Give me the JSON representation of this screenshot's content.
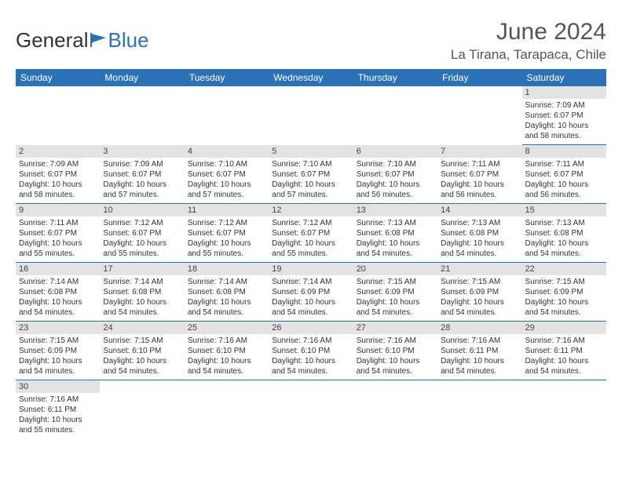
{
  "logo": {
    "text1": "General",
    "text2": "Blue"
  },
  "title": "June 2024",
  "location": "La Tirana, Tarapaca, Chile",
  "colors": {
    "header_bg": "#2a72b5",
    "daynum_bg": "#e3e3e3",
    "border": "#2a72b5"
  },
  "weekdays": [
    "Sunday",
    "Monday",
    "Tuesday",
    "Wednesday",
    "Thursday",
    "Friday",
    "Saturday"
  ],
  "weeks": [
    [
      null,
      null,
      null,
      null,
      null,
      null,
      {
        "d": "1",
        "sr": "7:09 AM",
        "ss": "6:07 PM",
        "dl": "10 hours and 58 minutes."
      }
    ],
    [
      {
        "d": "2",
        "sr": "7:09 AM",
        "ss": "6:07 PM",
        "dl": "10 hours and 58 minutes."
      },
      {
        "d": "3",
        "sr": "7:09 AM",
        "ss": "6:07 PM",
        "dl": "10 hours and 57 minutes."
      },
      {
        "d": "4",
        "sr": "7:10 AM",
        "ss": "6:07 PM",
        "dl": "10 hours and 57 minutes."
      },
      {
        "d": "5",
        "sr": "7:10 AM",
        "ss": "6:07 PM",
        "dl": "10 hours and 57 minutes."
      },
      {
        "d": "6",
        "sr": "7:10 AM",
        "ss": "6:07 PM",
        "dl": "10 hours and 56 minutes."
      },
      {
        "d": "7",
        "sr": "7:11 AM",
        "ss": "6:07 PM",
        "dl": "10 hours and 56 minutes."
      },
      {
        "d": "8",
        "sr": "7:11 AM",
        "ss": "6:07 PM",
        "dl": "10 hours and 56 minutes."
      }
    ],
    [
      {
        "d": "9",
        "sr": "7:11 AM",
        "ss": "6:07 PM",
        "dl": "10 hours and 55 minutes."
      },
      {
        "d": "10",
        "sr": "7:12 AM",
        "ss": "6:07 PM",
        "dl": "10 hours and 55 minutes."
      },
      {
        "d": "11",
        "sr": "7:12 AM",
        "ss": "6:07 PM",
        "dl": "10 hours and 55 minutes."
      },
      {
        "d": "12",
        "sr": "7:12 AM",
        "ss": "6:07 PM",
        "dl": "10 hours and 55 minutes."
      },
      {
        "d": "13",
        "sr": "7:13 AM",
        "ss": "6:08 PM",
        "dl": "10 hours and 54 minutes."
      },
      {
        "d": "14",
        "sr": "7:13 AM",
        "ss": "6:08 PM",
        "dl": "10 hours and 54 minutes."
      },
      {
        "d": "15",
        "sr": "7:13 AM",
        "ss": "6:08 PM",
        "dl": "10 hours and 54 minutes."
      }
    ],
    [
      {
        "d": "16",
        "sr": "7:14 AM",
        "ss": "6:08 PM",
        "dl": "10 hours and 54 minutes."
      },
      {
        "d": "17",
        "sr": "7:14 AM",
        "ss": "6:08 PM",
        "dl": "10 hours and 54 minutes."
      },
      {
        "d": "18",
        "sr": "7:14 AM",
        "ss": "6:08 PM",
        "dl": "10 hours and 54 minutes."
      },
      {
        "d": "19",
        "sr": "7:14 AM",
        "ss": "6:09 PM",
        "dl": "10 hours and 54 minutes."
      },
      {
        "d": "20",
        "sr": "7:15 AM",
        "ss": "6:09 PM",
        "dl": "10 hours and 54 minutes."
      },
      {
        "d": "21",
        "sr": "7:15 AM",
        "ss": "6:09 PM",
        "dl": "10 hours and 54 minutes."
      },
      {
        "d": "22",
        "sr": "7:15 AM",
        "ss": "6:09 PM",
        "dl": "10 hours and 54 minutes."
      }
    ],
    [
      {
        "d": "23",
        "sr": "7:15 AM",
        "ss": "6:09 PM",
        "dl": "10 hours and 54 minutes."
      },
      {
        "d": "24",
        "sr": "7:15 AM",
        "ss": "6:10 PM",
        "dl": "10 hours and 54 minutes."
      },
      {
        "d": "25",
        "sr": "7:16 AM",
        "ss": "6:10 PM",
        "dl": "10 hours and 54 minutes."
      },
      {
        "d": "26",
        "sr": "7:16 AM",
        "ss": "6:10 PM",
        "dl": "10 hours and 54 minutes."
      },
      {
        "d": "27",
        "sr": "7:16 AM",
        "ss": "6:10 PM",
        "dl": "10 hours and 54 minutes."
      },
      {
        "d": "28",
        "sr": "7:16 AM",
        "ss": "6:11 PM",
        "dl": "10 hours and 54 minutes."
      },
      {
        "d": "29",
        "sr": "7:16 AM",
        "ss": "6:11 PM",
        "dl": "10 hours and 54 minutes."
      }
    ],
    [
      {
        "d": "30",
        "sr": "7:16 AM",
        "ss": "6:11 PM",
        "dl": "10 hours and 55 minutes."
      },
      null,
      null,
      null,
      null,
      null,
      null
    ]
  ],
  "labels": {
    "sunrise": "Sunrise: ",
    "sunset": "Sunset: ",
    "daylight": "Daylight: "
  }
}
